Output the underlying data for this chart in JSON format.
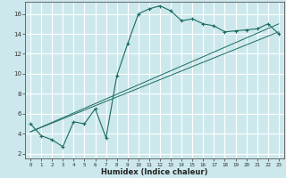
{
  "xlabel": "Humidex (Indice chaleur)",
  "bg_color": "#cce8ec",
  "grid_color": "#ffffff",
  "line_color": "#1a6b5e",
  "xlim": [
    -0.5,
    23.5
  ],
  "ylim": [
    1.5,
    17.2
  ],
  "xticks": [
    0,
    1,
    2,
    3,
    4,
    5,
    6,
    7,
    8,
    9,
    10,
    11,
    12,
    13,
    14,
    15,
    16,
    17,
    18,
    19,
    20,
    21,
    22,
    23
  ],
  "yticks": [
    2,
    4,
    6,
    8,
    10,
    12,
    14,
    16
  ],
  "curve1_x": [
    0,
    1,
    2,
    3,
    4,
    5,
    6,
    7,
    8,
    9,
    10,
    11,
    12,
    13,
    14,
    15,
    16,
    17,
    18,
    19,
    20,
    21,
    22,
    23
  ],
  "curve1_y": [
    5.0,
    3.8,
    3.4,
    2.7,
    5.2,
    5.0,
    6.5,
    3.6,
    9.8,
    13.0,
    16.0,
    16.5,
    16.8,
    16.3,
    15.3,
    15.5,
    15.0,
    14.8,
    14.2,
    14.3,
    14.4,
    14.5,
    15.0,
    14.0
  ],
  "line2_x": [
    0,
    23
  ],
  "line2_y": [
    4.2,
    14.2
  ],
  "line3_x": [
    0,
    23
  ],
  "line3_y": [
    4.2,
    15.0
  ]
}
